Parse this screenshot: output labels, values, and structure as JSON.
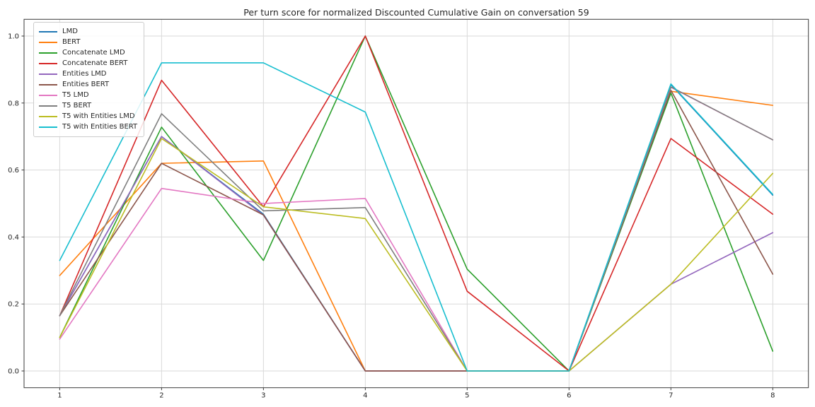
{
  "figure": {
    "background": "#ffffff",
    "spine_color": "#3a3a3a",
    "grid_color": "#d9d9d9",
    "tick_label_color": "#262626"
  },
  "chart_data": {
    "type": "line",
    "title": "Per turn score for normalized Discounted Cumulative Gain on conversation 59",
    "xlabel": "",
    "ylabel": "",
    "x": [
      1,
      2,
      3,
      4,
      5,
      6,
      7,
      8
    ],
    "xtick_labels": [
      "1",
      "2",
      "3",
      "4",
      "5",
      "6",
      "7",
      "8"
    ],
    "ytick_values": [
      0.0,
      0.2,
      0.4,
      0.6,
      0.8,
      1.0
    ],
    "ytick_labels": [
      "0.0",
      "0.2",
      "0.4",
      "0.6",
      "0.8",
      "1.0"
    ],
    "xlim": [
      0.65,
      8.35
    ],
    "ylim": [
      -0.05,
      1.05
    ],
    "grid": true,
    "legend_position": "upper left",
    "series": [
      {
        "name": "LMD",
        "color": "#1f77b4",
        "values": [
          0.165,
          0.7,
          0.468,
          0.0,
          0.0,
          0.0,
          0.855,
          0.525
        ]
      },
      {
        "name": "BERT",
        "color": "#ff7f0e",
        "values": [
          0.285,
          0.62,
          0.627,
          0.0,
          0.0,
          0.0,
          0.835,
          0.793
        ]
      },
      {
        "name": "Concatenate LMD",
        "color": "#2ca02c",
        "values": [
          0.1,
          0.728,
          0.33,
          1.0,
          0.304,
          0.0,
          0.83,
          0.059
        ]
      },
      {
        "name": "Concatenate BERT",
        "color": "#d62728",
        "values": [
          0.165,
          0.868,
          0.49,
          1.0,
          0.238,
          0.0,
          0.694,
          0.468
        ]
      },
      {
        "name": "Entities LMD",
        "color": "#9467bd",
        "values": [
          0.165,
          0.7,
          0.465,
          0.0,
          0.0,
          0.0,
          0.259,
          0.413
        ]
      },
      {
        "name": "Entities BERT",
        "color": "#8c564b",
        "values": [
          0.165,
          0.62,
          0.466,
          0.0,
          0.0,
          0.0,
          0.838,
          0.289
        ]
      },
      {
        "name": "T5 LMD",
        "color": "#e377c2",
        "values": [
          0.095,
          0.545,
          0.5,
          0.515,
          0.0,
          0.0,
          0.847,
          0.69
        ]
      },
      {
        "name": "T5 BERT",
        "color": "#7f7f7f",
        "values": [
          0.165,
          0.768,
          0.478,
          0.488,
          0.0,
          0.0,
          0.848,
          0.69
        ]
      },
      {
        "name": "T5 with Entities LMD",
        "color": "#bcbd22",
        "values": [
          0.1,
          0.694,
          0.49,
          0.455,
          0.0,
          0.0,
          0.259,
          0.59
        ]
      },
      {
        "name": "T5 with Entities BERT",
        "color": "#17becf",
        "values": [
          0.33,
          0.92,
          0.92,
          0.773,
          0.0,
          0.0,
          0.857,
          0.527
        ]
      }
    ]
  }
}
